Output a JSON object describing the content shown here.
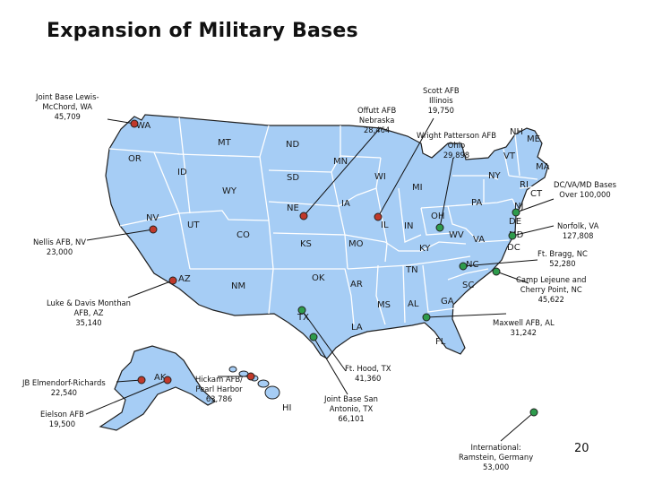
{
  "title": "Expansion of Military Bases",
  "page_number": "20",
  "colors": {
    "land": "#a6cdf5",
    "border": "#ffffff",
    "outline": "#1f1f1f",
    "dot_red": "#c0392b",
    "dot_green": "#2e9b4c"
  },
  "bases": [
    {
      "id": "lewis-mcchord",
      "lines": [
        "Joint Base Lewis-",
        "McChord, WA",
        "45,709"
      ],
      "dot": "red"
    },
    {
      "id": "offutt",
      "lines": [
        "Offutt AFB",
        "Nebraska",
        "28,464"
      ],
      "dot": "red"
    },
    {
      "id": "scott",
      "lines": [
        "Scott AFB",
        "Illinois",
        "19,750"
      ],
      "dot": "red"
    },
    {
      "id": "wright-patterson",
      "lines": [
        "Wright Patterson AFB",
        "Ohio",
        "29,898"
      ],
      "dot": "green"
    },
    {
      "id": "dc-va-md",
      "lines": [
        "DC/VA/MD Bases",
        "Over 100,000"
      ],
      "dot": "green"
    },
    {
      "id": "norfolk",
      "lines": [
        "Norfolk, VA",
        "127,808"
      ],
      "dot": "green"
    },
    {
      "id": "ft-bragg",
      "lines": [
        "Ft. Bragg, NC",
        "52,280"
      ],
      "dot": "green"
    },
    {
      "id": "camp-lejeune",
      "lines": [
        "Camp Lejeune and",
        "Cherry Point, NC",
        "45,622"
      ],
      "dot": "green"
    },
    {
      "id": "maxwell",
      "lines": [
        "Maxwell AFB, AL",
        "31,242"
      ],
      "dot": "green"
    },
    {
      "id": "nellis",
      "lines": [
        "Nellis AFB, NV",
        "23,000"
      ],
      "dot": "red"
    },
    {
      "id": "luke-davis",
      "lines": [
        "Luke & Davis Monthan",
        "AFB, AZ",
        "35,140"
      ],
      "dot": "red"
    },
    {
      "id": "ft-hood",
      "lines": [
        "Ft. Hood, TX",
        "41,360"
      ],
      "dot": "green"
    },
    {
      "id": "san-antonio",
      "lines": [
        "Joint Base San",
        "Antonio, TX",
        "66,101"
      ],
      "dot": "green"
    },
    {
      "id": "elmendorf",
      "lines": [
        "JB Elmendorf-Richards",
        "22,540"
      ],
      "dot": "red"
    },
    {
      "id": "eielson",
      "lines": [
        "Eielson AFB",
        "19,500"
      ],
      "dot": "red"
    },
    {
      "id": "hickam",
      "lines": [
        "Hickam AFB/",
        "Pearl Harbor",
        "63,786"
      ],
      "dot": "red"
    },
    {
      "id": "ramstein",
      "lines": [
        "International:",
        "Ramstein, Germany",
        "53,000"
      ],
      "dot": "green"
    }
  ],
  "states": [
    "WA",
    "OR",
    "ID",
    "MT",
    "WY",
    "NV",
    "UT",
    "CO",
    "AZ",
    "NM",
    "ND",
    "SD",
    "NE",
    "KS",
    "OK",
    "TX",
    "MN",
    "IA",
    "MO",
    "AR",
    "LA",
    "WI",
    "IL",
    "MI",
    "IN",
    "KY",
    "TN",
    "MS",
    "AL",
    "GA",
    "FL",
    "SC",
    "NC",
    "VA",
    "WV",
    "OH",
    "PA",
    "NY",
    "VT",
    "NH",
    "ME",
    "MA",
    "CT",
    "RI",
    "NJ",
    "DE",
    "MD",
    "DC",
    "AK",
    "HI"
  ]
}
